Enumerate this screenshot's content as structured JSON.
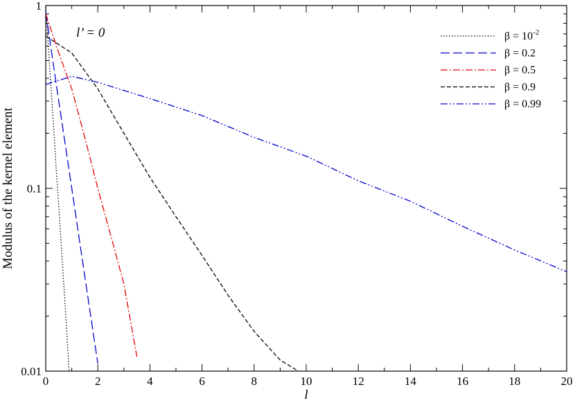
{
  "chart_data": {
    "type": "line",
    "xlabel": "l",
    "ylabel": "Modulus of the kernel element",
    "xlim": [
      0,
      20
    ],
    "ylim": [
      0.01,
      1
    ],
    "yscale": "log",
    "grid": false,
    "legend_position": "top-right",
    "x_ticks": [
      "0",
      "2",
      "4",
      "6",
      "8",
      "10",
      "12",
      "14",
      "16",
      "18",
      "20"
    ],
    "y_ticks": [
      "0.01",
      "0.1",
      "1"
    ],
    "annotation": "l’ = 0",
    "series": [
      {
        "name": "β = 10",
        "name_sup": "-2",
        "color": "#000000",
        "dash": "1.5,2.5",
        "x": [
          0,
          0.1,
          0.2,
          0.3,
          0.4,
          0.5,
          0.6,
          0.7,
          0.8,
          0.9
        ],
        "y": [
          0.98,
          0.6,
          0.36,
          0.22,
          0.13,
          0.08,
          0.048,
          0.029,
          0.017,
          0.01
        ]
      },
      {
        "name": "β = 0.2",
        "color": "#0000cc",
        "dash": "13,5",
        "x": [
          0,
          0.5,
          1.0,
          1.5,
          2.0
        ],
        "y": [
          0.92,
          0.3,
          0.1,
          0.033,
          0.011
        ]
      },
      {
        "name": "β = 0.5",
        "color": "#e00000",
        "dash": "10,3,2,3",
        "x": [
          0,
          0.5,
          1.0,
          1.5,
          2.0,
          2.5,
          3.0,
          3.5
        ],
        "y": [
          0.9,
          0.55,
          0.35,
          0.19,
          0.1,
          0.055,
          0.03,
          0.012
        ]
      },
      {
        "name": "β = 0.9",
        "color": "#000000",
        "dash": "6,3",
        "x": [
          0,
          1,
          2,
          3,
          4,
          5,
          6,
          7,
          8,
          9,
          9.7
        ],
        "y": [
          0.68,
          0.55,
          0.35,
          0.2,
          0.115,
          0.07,
          0.043,
          0.026,
          0.0165,
          0.0115,
          0.01
        ]
      },
      {
        "name": "β = 0.99",
        "color": "#0000cc",
        "dash": "10,3,2,3,2,3",
        "x": [
          0,
          1,
          2,
          4,
          6,
          8,
          10,
          12,
          14,
          16,
          18,
          20
        ],
        "y": [
          0.37,
          0.41,
          0.38,
          0.31,
          0.25,
          0.19,
          0.15,
          0.11,
          0.085,
          0.062,
          0.046,
          0.035
        ]
      }
    ]
  }
}
